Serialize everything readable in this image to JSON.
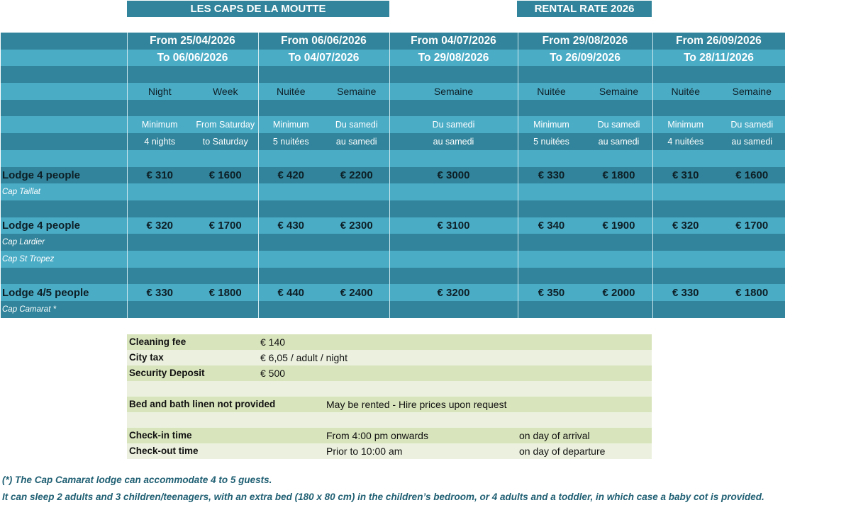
{
  "titles": {
    "left": "LES CAPS DE LA MOUTTE",
    "right": "RENTAL RATE 2026"
  },
  "periods": [
    {
      "from": "From 25/04/2026",
      "to": "To 06/06/2026",
      "cols": [
        {
          "label": "Night",
          "cond1": "Minimum",
          "cond2": "4 nights"
        },
        {
          "label": "Week",
          "cond1": "From Saturday",
          "cond2": "to Saturday"
        }
      ]
    },
    {
      "from": "From 06/06/2026",
      "to": "To  04/07/2026",
      "cols": [
        {
          "label": "Nuitée",
          "cond1": "Minimum",
          "cond2": "5 nuitées"
        },
        {
          "label": "Semaine",
          "cond1": "Du samedi",
          "cond2": "au samedi"
        }
      ]
    },
    {
      "from": "From  04/07/2026",
      "to": "To 29/08/2026",
      "cols": [
        {
          "label": "Semaine",
          "cond1": "Du samedi",
          "cond2": "au samedi"
        }
      ]
    },
    {
      "from": "From 29/08/2026",
      "to": "To 26/09/2026",
      "cols": [
        {
          "label": "Nuitée",
          "cond1": "Minimum",
          "cond2": "5 nuitées"
        },
        {
          "label": "Semaine",
          "cond1": "Du samedi",
          "cond2": "au samedi"
        }
      ]
    },
    {
      "from": "From 26/09/2026",
      "to": "To 28/11/2026",
      "cols": [
        {
          "label": "Nuitée",
          "cond1": "Minimum",
          "cond2": "4 nuitées"
        },
        {
          "label": "Semaine",
          "cond1": "Du samedi",
          "cond2": "au samedi"
        }
      ]
    }
  ],
  "lodges": [
    {
      "name": "Lodge 4 people",
      "caps": [
        "Cap Taillat"
      ],
      "prices": [
        "€ 310",
        "€ 1600",
        "€ 420",
        "€ 2200",
        "€ 3000",
        "€ 330",
        "€ 1800",
        "€ 310",
        "€ 1600"
      ]
    },
    {
      "name": "Lodge 4 people",
      "caps": [
        "Cap Lardier",
        "Cap St Tropez"
      ],
      "prices": [
        "€ 320",
        "€ 1700",
        "€ 430",
        "€ 2300",
        "€ 3100",
        "€ 340",
        "€ 1900",
        "€ 320",
        "€ 1700"
      ]
    },
    {
      "name": "Lodge 4/5 people",
      "caps": [
        "Cap Camarat *"
      ],
      "prices": [
        "€ 330",
        "€ 1800",
        "€ 440",
        "€ 2400",
        "€ 3200",
        "€ 350",
        "€ 2000",
        "€ 330",
        "€ 1800"
      ]
    }
  ],
  "fees": [
    {
      "k": "Cleaning fee",
      "v": "€ 140",
      "v2": "",
      "v3": ""
    },
    {
      "k": "City tax",
      "v": "€ 6,05 / adult / night",
      "v2": "",
      "v3": ""
    },
    {
      "k": "Security Deposit",
      "v": "€ 500",
      "v2": "",
      "v3": ""
    },
    {
      "k": "",
      "v": "",
      "v2": "",
      "v3": ""
    },
    {
      "k": "Bed and bath linen not provided",
      "v": "",
      "v2": "May be rented  - Hire prices upon request",
      "v3": ""
    },
    {
      "k": "",
      "v": "",
      "v2": "",
      "v3": ""
    },
    {
      "k": "Check-in time",
      "v": "",
      "v2": "From 4:00 pm onwards",
      "v3": "on day of arrival"
    },
    {
      "k": "Check-out time",
      "v": "",
      "v2": "Prior to 10:00 am",
      "v3": "on day of departure"
    }
  ],
  "notes": [
    "(*) The Cap Camarat lodge can accommodate 4 to 5 guests.",
    "It can sleep 2 adults and 3 children/teenagers, with an extra bed (180 x 80 cm) in the children’s bedroom, or 4 adults and a toddler, in which case a baby cot is provided."
  ],
  "colors": {
    "dark": "#31849b",
    "light": "#4bacc6",
    "green": "#d8e4bc",
    "green_light": "#ebf1de"
  }
}
